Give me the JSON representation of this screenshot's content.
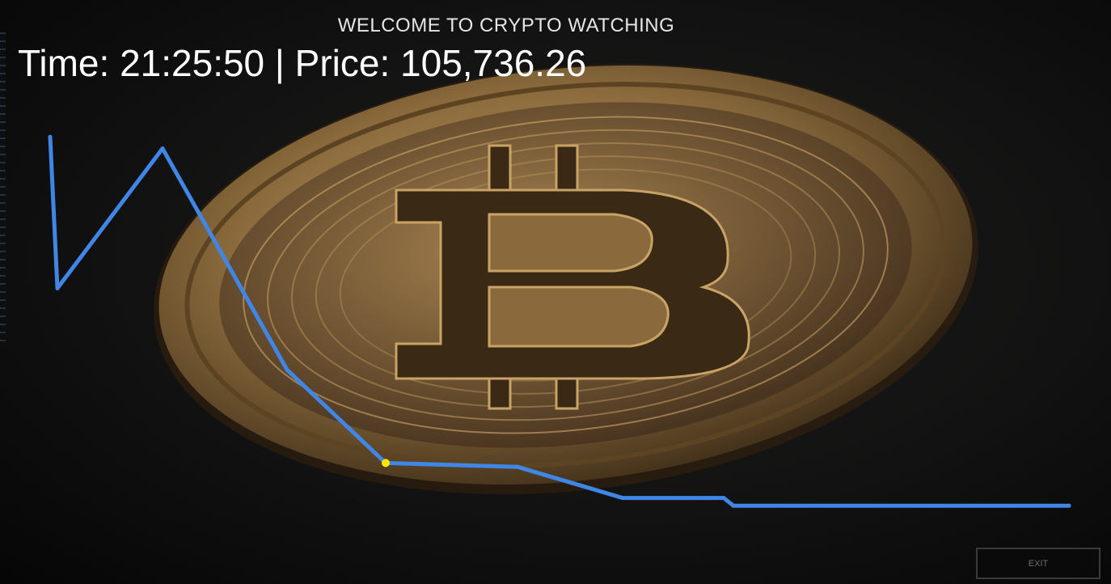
{
  "header": {
    "title": "WELCOME TO CRYPTO WATCHING"
  },
  "ticker": {
    "time_label": "Time:",
    "time": "21:25:50",
    "separator": "|",
    "price_label": "Price:",
    "price": "105,736.26"
  },
  "background": {
    "image": "bitcoin-coin",
    "coin_color": "#b08a52"
  },
  "chart_data": {
    "type": "line",
    "title": "",
    "xlabel": "",
    "ylabel": "",
    "line_color": "#3f86e6",
    "marker_color": "#ffe600",
    "marker_index": 4,
    "ylim": [
      0,
      100
    ],
    "x": [
      0,
      1,
      2,
      3,
      4,
      5,
      6,
      7,
      8,
      9
    ],
    "series": [
      {
        "values": [
          96,
          57,
          93,
          36,
          12,
          11,
          3,
          3,
          1,
          1
        ]
      }
    ]
  },
  "controls": {
    "exit_label": "EXIT"
  }
}
